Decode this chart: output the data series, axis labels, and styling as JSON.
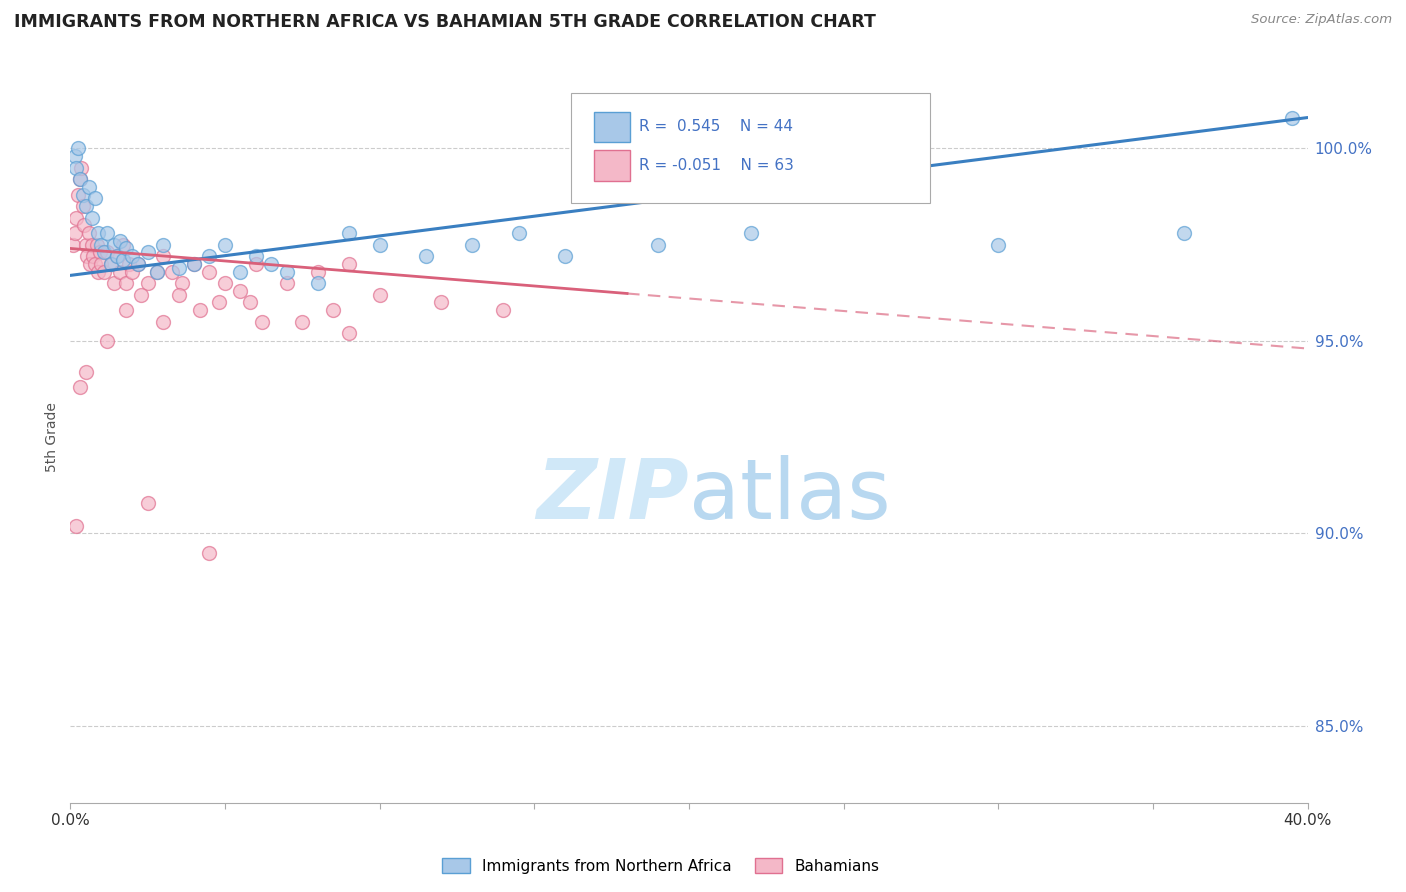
{
  "title": "IMMIGRANTS FROM NORTHERN AFRICA VS BAHAMIAN 5TH GRADE CORRELATION CHART",
  "source": "Source: ZipAtlas.com",
  "ylabel": "5th Grade",
  "right_yticks": [
    85.0,
    90.0,
    95.0,
    100.0
  ],
  "R_blue": 0.545,
  "N_blue": 44,
  "R_pink": -0.051,
  "N_pink": 63,
  "blue_color": "#a8c8e8",
  "pink_color": "#f4b8c8",
  "blue_edge_color": "#5a9fd4",
  "pink_edge_color": "#e07090",
  "blue_line_color": "#3a7fc1",
  "pink_line_color": "#d9607a",
  "watermark_color": "#d0e8f8",
  "xlim": [
    0,
    40
  ],
  "ylim": [
    83,
    102
  ],
  "blue_trend_x0": 0,
  "blue_trend_y0": 96.7,
  "blue_trend_x1": 40,
  "blue_trend_y1": 100.8,
  "pink_trend_x0": 0,
  "pink_trend_y0": 97.4,
  "pink_trend_x1": 40,
  "pink_trend_y1": 94.8,
  "pink_solid_end": 18,
  "blue_scatter_x": [
    0.15,
    0.2,
    0.25,
    0.3,
    0.4,
    0.5,
    0.6,
    0.7,
    0.8,
    0.9,
    1.0,
    1.1,
    1.2,
    1.3,
    1.4,
    1.5,
    1.6,
    1.7,
    1.8,
    2.0,
    2.2,
    2.5,
    2.8,
    3.0,
    3.5,
    4.0,
    4.5,
    5.0,
    5.5,
    6.0,
    6.5,
    7.0,
    8.0,
    9.0,
    10.0,
    11.5,
    13.0,
    14.5,
    16.0,
    19.0,
    22.0,
    30.0,
    36.0,
    39.5
  ],
  "blue_scatter_y": [
    99.8,
    99.5,
    100.0,
    99.2,
    98.8,
    98.5,
    99.0,
    98.2,
    98.7,
    97.8,
    97.5,
    97.3,
    97.8,
    97.0,
    97.5,
    97.2,
    97.6,
    97.1,
    97.4,
    97.2,
    97.0,
    97.3,
    96.8,
    97.5,
    96.9,
    97.0,
    97.2,
    97.5,
    96.8,
    97.2,
    97.0,
    96.8,
    96.5,
    97.8,
    97.5,
    97.2,
    97.5,
    97.8,
    97.2,
    97.5,
    97.8,
    97.5,
    97.8,
    100.8
  ],
  "pink_scatter_x": [
    0.1,
    0.15,
    0.2,
    0.25,
    0.3,
    0.35,
    0.4,
    0.45,
    0.5,
    0.55,
    0.6,
    0.65,
    0.7,
    0.75,
    0.8,
    0.85,
    0.9,
    0.95,
    1.0,
    1.1,
    1.2,
    1.3,
    1.4,
    1.5,
    1.6,
    1.7,
    1.8,
    1.9,
    2.0,
    2.2,
    2.5,
    2.8,
    3.0,
    3.3,
    3.6,
    4.0,
    4.5,
    5.0,
    5.5,
    6.0,
    7.0,
    8.0,
    9.0,
    1.8,
    2.3,
    3.0,
    4.2,
    5.8,
    7.5,
    3.5,
    4.8,
    6.2,
    8.5,
    10.0,
    12.0,
    14.0,
    0.3,
    0.5,
    1.2,
    0.2,
    2.5,
    4.5,
    9.0
  ],
  "pink_scatter_y": [
    97.5,
    97.8,
    98.2,
    98.8,
    99.2,
    99.5,
    98.5,
    98.0,
    97.5,
    97.2,
    97.8,
    97.0,
    97.5,
    97.2,
    97.0,
    97.5,
    96.8,
    97.3,
    97.0,
    96.8,
    97.3,
    97.0,
    96.5,
    97.2,
    96.8,
    97.5,
    96.5,
    97.0,
    96.8,
    97.0,
    96.5,
    96.8,
    97.2,
    96.8,
    96.5,
    97.0,
    96.8,
    96.5,
    96.3,
    97.0,
    96.5,
    96.8,
    97.0,
    95.8,
    96.2,
    95.5,
    95.8,
    96.0,
    95.5,
    96.2,
    96.0,
    95.5,
    95.8,
    96.2,
    96.0,
    95.8,
    93.8,
    94.2,
    95.0,
    90.2,
    90.8,
    89.5,
    95.2
  ]
}
